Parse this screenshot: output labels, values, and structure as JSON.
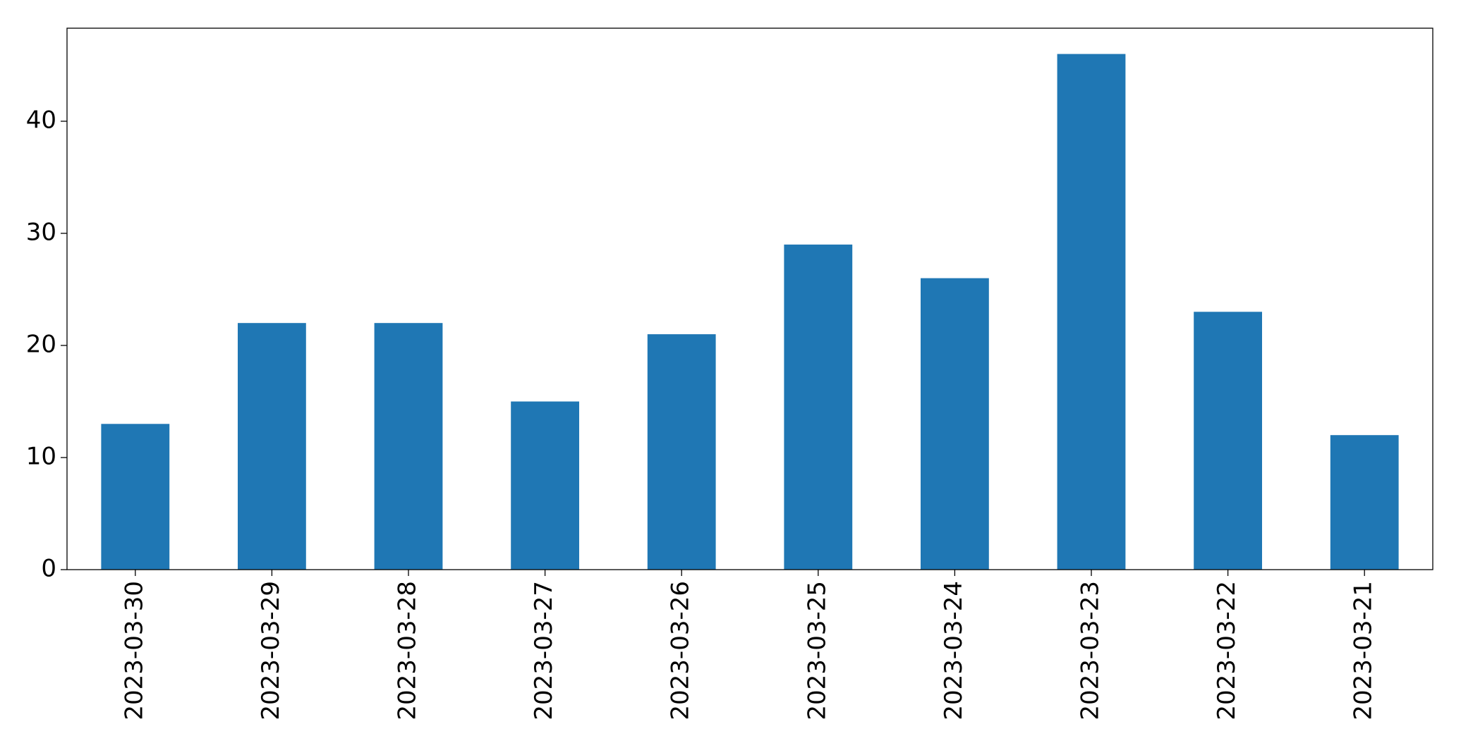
{
  "chart_data": {
    "type": "bar",
    "categories": [
      "2023-03-30",
      "2023-03-29",
      "2023-03-28",
      "2023-03-27",
      "2023-03-26",
      "2023-03-25",
      "2023-03-24",
      "2023-03-23",
      "2023-03-22",
      "2023-03-21"
    ],
    "values": [
      13,
      22,
      22,
      15,
      21,
      29,
      26,
      46,
      23,
      12
    ],
    "color": "#1f77b4",
    "ylim": [
      0,
      48.3
    ],
    "yticks": [
      0,
      10,
      20,
      30,
      40
    ],
    "grid": false
  }
}
